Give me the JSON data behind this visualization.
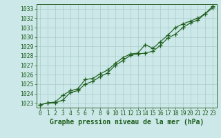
{
  "line1": [
    [
      0,
      1022.8
    ],
    [
      1,
      1023.0
    ],
    [
      2,
      1023.0
    ],
    [
      3,
      1023.3
    ],
    [
      4,
      1024.1
    ],
    [
      5,
      1024.3
    ],
    [
      6,
      1025.0
    ],
    [
      7,
      1025.3
    ],
    [
      8,
      1025.8
    ],
    [
      9,
      1026.2
    ],
    [
      10,
      1027.0
    ],
    [
      11,
      1027.5
    ],
    [
      12,
      1028.05
    ],
    [
      13,
      1028.2
    ],
    [
      14,
      1028.3
    ],
    [
      15,
      1028.5
    ],
    [
      16,
      1029.1
    ],
    [
      17,
      1029.9
    ],
    [
      18,
      1030.3
    ],
    [
      19,
      1031.0
    ],
    [
      20,
      1031.5
    ],
    [
      21,
      1031.8
    ],
    [
      22,
      1032.5
    ],
    [
      23,
      1033.1
    ]
  ],
  "line2": [
    [
      0,
      1022.8
    ],
    [
      1,
      1023.0
    ],
    [
      2,
      1023.1
    ],
    [
      3,
      1023.8
    ],
    [
      4,
      1024.3
    ],
    [
      5,
      1024.5
    ],
    [
      6,
      1025.5
    ],
    [
      7,
      1025.6
    ],
    [
      8,
      1026.1
    ],
    [
      9,
      1026.5
    ],
    [
      10,
      1027.2
    ],
    [
      11,
      1027.8
    ],
    [
      12,
      1028.2
    ],
    [
      13,
      1028.3
    ],
    [
      14,
      1029.2
    ],
    [
      15,
      1028.8
    ],
    [
      16,
      1029.5
    ],
    [
      17,
      1030.2
    ],
    [
      18,
      1031.0
    ],
    [
      19,
      1031.4
    ],
    [
      20,
      1031.7
    ],
    [
      21,
      1032.0
    ],
    [
      22,
      1032.5
    ],
    [
      23,
      1033.3
    ]
  ],
  "bg_color": "#cce8e8",
  "grid_color": "#aacccc",
  "line_color": "#1a5c1a",
  "marker": "+",
  "ylabel_ticks": [
    1023,
    1024,
    1025,
    1026,
    1027,
    1028,
    1029,
    1030,
    1031,
    1032,
    1033
  ],
  "xlabel_ticks": [
    0,
    1,
    2,
    3,
    4,
    5,
    6,
    7,
    8,
    9,
    10,
    11,
    12,
    13,
    14,
    15,
    16,
    17,
    18,
    19,
    20,
    21,
    22,
    23
  ],
  "xlim": [
    -0.5,
    23.5
  ],
  "ylim": [
    1022.5,
    1033.5
  ],
  "xlabel": "Graphe pression niveau de la mer (hPa)",
  "xlabel_fontsize": 7.0,
  "tick_fontsize": 5.8,
  "line_width": 0.8,
  "marker_size": 4,
  "marker_ew": 0.9
}
